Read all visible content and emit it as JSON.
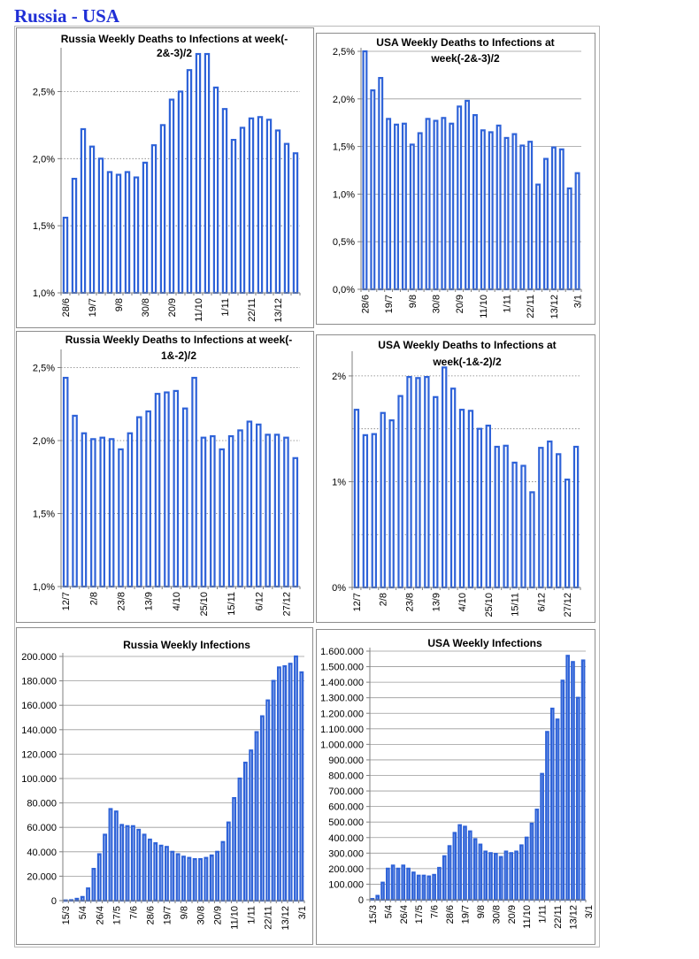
{
  "page_title": "Russia - USA",
  "chart_data": [
    {
      "id": "ru1",
      "type": "bar",
      "title": [
        "Russia Weekly Deaths to Infections at week(-",
        "2&-3)/2"
      ],
      "ylim": [
        0.01,
        0.028
      ],
      "yticks": [
        0.01,
        0.015,
        0.02,
        0.025
      ],
      "ytick_labels": [
        "1,0%",
        "1,5%",
        "2,0%",
        "2,5%"
      ],
      "grid": "dotted",
      "xtick_labels": [
        "28/6",
        "19/7",
        "9/8",
        "30/8",
        "20/9",
        "11/10",
        "1/11",
        "22/11",
        "13/12"
      ],
      "xtick_index": [
        0,
        3,
        6,
        9,
        12,
        15,
        18,
        21,
        24
      ],
      "values": [
        0.0156,
        0.0185,
        0.0222,
        0.0209,
        0.02,
        0.019,
        0.0188,
        0.019,
        0.0186,
        0.0197,
        0.021,
        0.0225,
        0.0244,
        0.025,
        0.0266,
        0.0278,
        0.0278,
        0.0253,
        0.0237,
        0.0214,
        0.0223,
        0.023,
        0.0231,
        0.0229,
        0.0221,
        0.0211,
        0.0204
      ]
    },
    {
      "id": "us1",
      "type": "bar",
      "title": [
        "USA Weekly Deaths to  Infections at",
        "week(-2&-3)/2"
      ],
      "ylim": [
        0,
        0.025
      ],
      "yticks": [
        0,
        0.005,
        0.01,
        0.015,
        0.02,
        0.025
      ],
      "ytick_labels": [
        "0,0%",
        "0,5%",
        "1,0%",
        "1,5%",
        "2,0%",
        "2,5%"
      ],
      "grid": "solid",
      "xtick_labels": [
        "28/6",
        "19/7",
        "9/8",
        "30/8",
        "20/9",
        "11/10",
        "1/11",
        "22/11",
        "13/12",
        "3/1"
      ],
      "xtick_index": [
        0,
        3,
        6,
        9,
        12,
        15,
        18,
        21,
        24,
        27
      ],
      "values": [
        0.025,
        0.0209,
        0.0222,
        0.0179,
        0.0173,
        0.0174,
        0.0152,
        0.0164,
        0.0179,
        0.0177,
        0.018,
        0.0174,
        0.0192,
        0.0198,
        0.0183,
        0.0167,
        0.0165,
        0.0172,
        0.0159,
        0.0163,
        0.0151,
        0.0155,
        0.011,
        0.0137,
        0.0149,
        0.0147,
        0.0106,
        0.0122
      ]
    },
    {
      "id": "ru2",
      "type": "bar",
      "title": [
        "Russia Weekly Deaths to Infections at week(-",
        "1&-2)/2"
      ],
      "ylim": [
        0.01,
        0.026
      ],
      "yticks": [
        0.01,
        0.015,
        0.02,
        0.025
      ],
      "ytick_labels": [
        "1,0%",
        "1,5%",
        "2,0%",
        "2,5%"
      ],
      "grid": "dotted",
      "xtick_labels": [
        "12/7",
        "2/8",
        "23/8",
        "13/9",
        "4/10",
        "25/10",
        "15/11",
        "6/12",
        "27/12"
      ],
      "xtick_index": [
        0,
        3,
        6,
        9,
        12,
        15,
        18,
        21,
        24
      ],
      "values": [
        0.0243,
        0.0217,
        0.0205,
        0.0201,
        0.0202,
        0.0201,
        0.0194,
        0.0205,
        0.0216,
        0.022,
        0.0232,
        0.0233,
        0.0234,
        0.0222,
        0.0243,
        0.0202,
        0.0203,
        0.0194,
        0.0203,
        0.0207,
        0.0213,
        0.0211,
        0.0204,
        0.0204,
        0.0202,
        0.0188
      ]
    },
    {
      "id": "us2",
      "type": "bar",
      "title": [
        "USA Weekly Deaths to  Infections at",
        "week(-1&-2)/2"
      ],
      "ylim": [
        0,
        0.022
      ],
      "yticks": [
        0,
        0.01,
        0.02
      ],
      "ytick_labels": [
        "0%",
        "1%",
        "2%"
      ],
      "grid": "dotted",
      "grid_extra": [
        0.005,
        0.015
      ],
      "xtick_labels": [
        "12/7",
        "2/8",
        "23/8",
        "13/9",
        "4/10",
        "25/10",
        "15/11",
        "6/12",
        "27/12"
      ],
      "xtick_index": [
        0,
        3,
        6,
        9,
        12,
        15,
        18,
        21,
        24
      ],
      "values": [
        0.0168,
        0.0144,
        0.0145,
        0.0165,
        0.0158,
        0.0181,
        0.0199,
        0.0198,
        0.0199,
        0.018,
        0.0208,
        0.0188,
        0.0168,
        0.0167,
        0.015,
        0.0153,
        0.0133,
        0.0134,
        0.0118,
        0.0115,
        0.009,
        0.0132,
        0.0138,
        0.0126,
        0.0102,
        0.0133
      ]
    },
    {
      "id": "ru3",
      "type": "bar",
      "title": [
        "Russia Weekly Infections"
      ],
      "ylim": [
        0,
        200000
      ],
      "yticks": [
        0,
        20000,
        40000,
        60000,
        80000,
        100000,
        120000,
        140000,
        160000,
        180000,
        200000
      ],
      "ytick_labels": [
        "0",
        "20.000",
        "40.000",
        "60.000",
        "80.000",
        "100.000",
        "120.000",
        "140.000",
        "160.000",
        "180.000",
        "200.000"
      ],
      "grid": "solid",
      "xtick_labels": [
        "15/3",
        "5/4",
        "26/4",
        "17/5",
        "7/6",
        "28/6",
        "19/7",
        "9/8",
        "30/8",
        "20/9",
        "11/10",
        "1/11",
        "22/11",
        "13/12",
        "3/1"
      ],
      "xtick_index": [
        0,
        3,
        6,
        9,
        12,
        15,
        18,
        21,
        24,
        27,
        30,
        33,
        36,
        39,
        42
      ],
      "values": [
        200,
        400,
        1500,
        3000,
        10000,
        26000,
        38000,
        54000,
        75000,
        73000,
        62000,
        61000,
        61000,
        58000,
        54000,
        50000,
        47000,
        45000,
        44000,
        40000,
        38000,
        36000,
        35000,
        34000,
        34000,
        35000,
        37000,
        40000,
        48000,
        64000,
        84000,
        100000,
        113000,
        123000,
        138000,
        151000,
        164000,
        180000,
        191000,
        192000,
        194000,
        202000,
        187000
      ]
    },
    {
      "id": "us3",
      "type": "bar",
      "title": [
        "USA  Weekly Infections"
      ],
      "ylim": [
        0,
        1600000
      ],
      "yticks": [
        0,
        100000,
        200000,
        300000,
        400000,
        500000,
        600000,
        700000,
        800000,
        900000,
        1000000,
        1100000,
        1200000,
        1300000,
        1400000,
        1500000,
        1600000
      ],
      "ytick_labels": [
        "0",
        "100.000",
        "200.000",
        "300.000",
        "400.000",
        "500.000",
        "600.000",
        "700.000",
        "800.000",
        "900.000",
        "1.000.000",
        "1.100.000",
        "1.200.000",
        "1.300.000",
        "1.400.000",
        "1.500.000",
        "1.600.000"
      ],
      "grid": "solid",
      "xtick_labels": [
        "15/3",
        "5/4",
        "26/4",
        "17/5",
        "7/6",
        "28/6",
        "19/7",
        "9/8",
        "30/8",
        "20/9",
        "11/10",
        "1/11",
        "22/11",
        "13/12",
        "3/1"
      ],
      "xtick_index": [
        0,
        3,
        6,
        9,
        12,
        15,
        18,
        21,
        24,
        27,
        30,
        33,
        36,
        39,
        42
      ],
      "values": [
        5000,
        25000,
        110000,
        200000,
        220000,
        200000,
        220000,
        200000,
        175000,
        155000,
        155000,
        150000,
        160000,
        205000,
        280000,
        345000,
        430000,
        480000,
        470000,
        440000,
        390000,
        355000,
        310000,
        300000,
        295000,
        275000,
        310000,
        300000,
        310000,
        350000,
        400000,
        490000,
        580000,
        810000,
        1080000,
        1230000,
        1160000,
        1410000,
        1570000,
        1530000,
        1300000,
        1540000
      ]
    }
  ]
}
